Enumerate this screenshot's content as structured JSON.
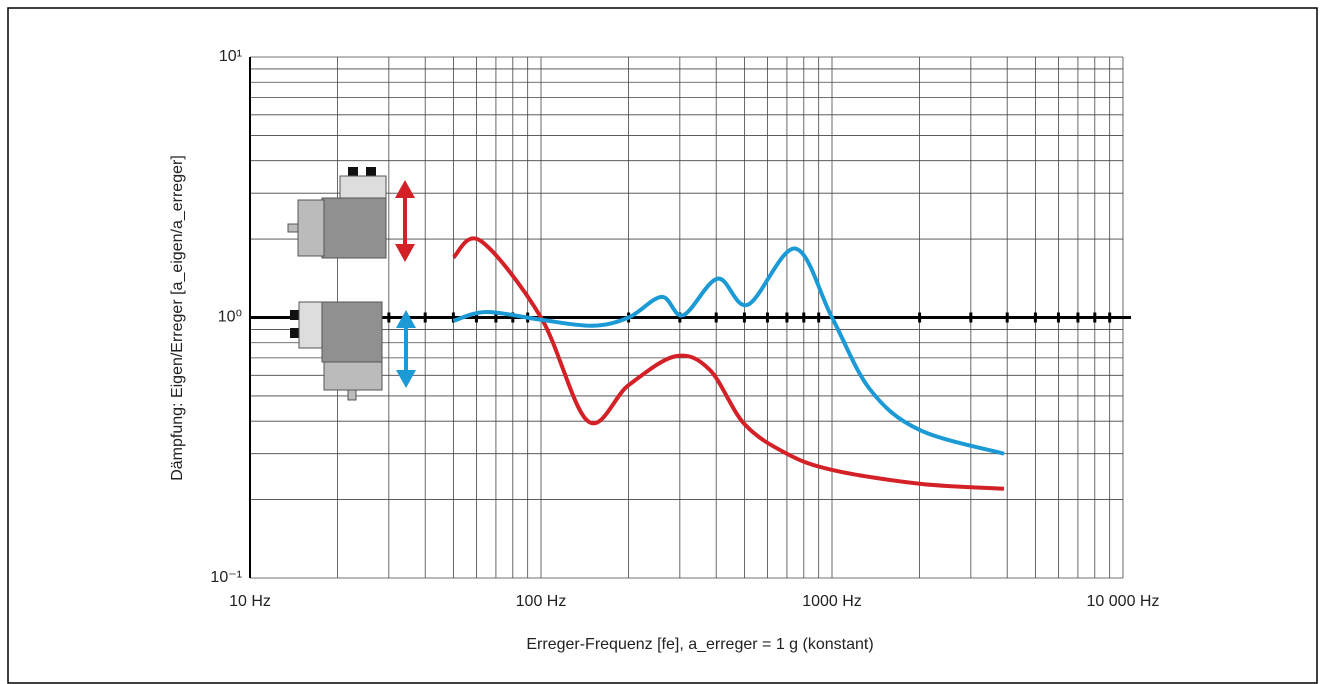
{
  "chart_data": {
    "type": "line",
    "xlabel": "Erreger-Frequenz [fe], a_erreger = 1 g (konstant)",
    "ylabel": "Dämpfung: Eigen/Erreger [a_eigen/a_erreger]",
    "xscale": "log",
    "yscale": "log",
    "grid": true,
    "xlim": [
      10,
      10000
    ],
    "ylim": [
      0.1,
      10
    ],
    "xticks": [
      {
        "value": 10,
        "label": "10 Hz"
      },
      {
        "value": 100,
        "label": "100 Hz"
      },
      {
        "value": 1000,
        "label": "1000 Hz"
      },
      {
        "value": 10000,
        "label": "10 000 Hz"
      }
    ],
    "yticks": [
      {
        "value": 0.1,
        "label": "10⁻¹"
      },
      {
        "value": 1,
        "label": "10⁰"
      },
      {
        "value": 10,
        "label": "10¹"
      }
    ],
    "reference_line": 1,
    "series": [
      {
        "color": "#d42027",
        "x": [
          50,
          62,
          100,
          145,
          200,
          290,
          380,
          500,
          700,
          1000,
          2000,
          3900
        ],
        "values": [
          1.7,
          1.97,
          1.0,
          0.4,
          0.55,
          0.71,
          0.63,
          0.39,
          0.3,
          0.26,
          0.23,
          0.22
        ]
      },
      {
        "color": "#1b9ad6",
        "x": [
          50,
          65,
          100,
          150,
          200,
          260,
          308,
          405,
          514,
          747,
          1000,
          1350,
          2000,
          3900
        ],
        "values": [
          0.97,
          1.05,
          0.98,
          0.93,
          1.0,
          1.2,
          1.02,
          1.41,
          1.12,
          1.84,
          1.0,
          0.53,
          0.37,
          0.3
        ]
      }
    ]
  }
}
